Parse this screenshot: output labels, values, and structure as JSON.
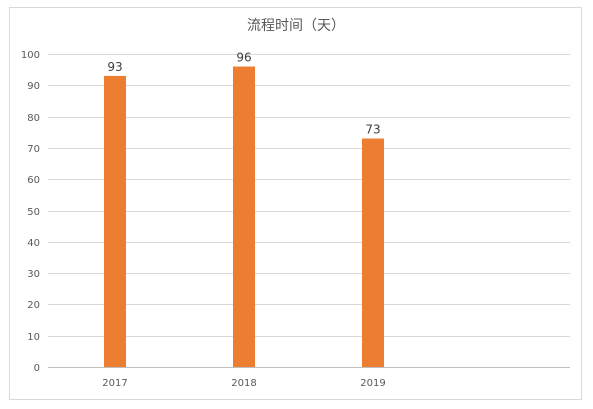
{
  "chart_data": {
    "type": "bar",
    "title": "流程时间（天）",
    "categories": [
      "2017",
      "2018",
      "2019"
    ],
    "values": [
      93,
      96,
      73
    ],
    "data_labels": [
      "93",
      "96",
      "73"
    ],
    "ylim": [
      0,
      100
    ],
    "yticks": [
      0,
      10,
      20,
      30,
      40,
      50,
      60,
      70,
      80,
      90,
      100
    ],
    "ytick_labels": [
      "0",
      "10",
      "20",
      "30",
      "40",
      "50",
      "60",
      "70",
      "80",
      "90",
      "100"
    ],
    "xlabel": "",
    "ylabel": "",
    "grid": true,
    "legend": "none",
    "bar_color": "#ED7D31"
  }
}
